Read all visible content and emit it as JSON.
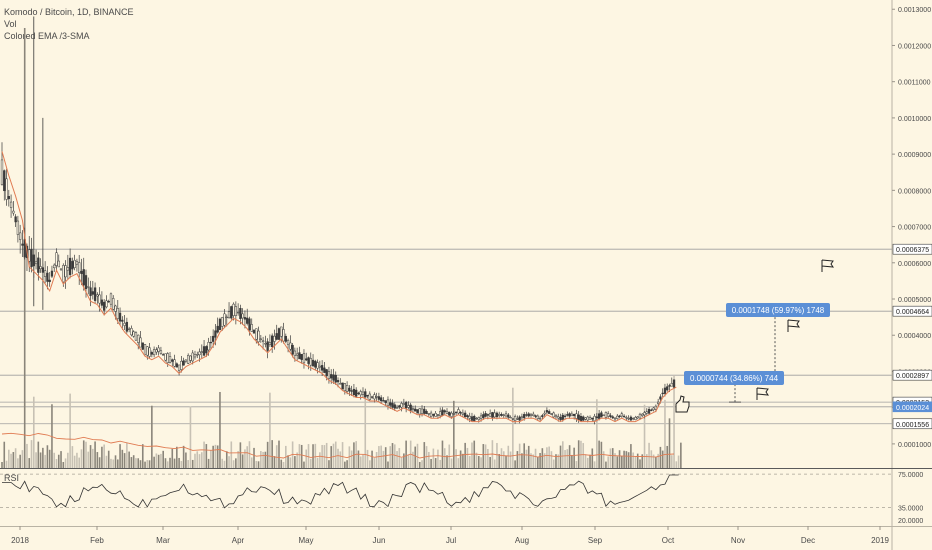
{
  "legend": {
    "title": "Komodo / Bitcoin, 1D, BINANCE",
    "line2": "Vol",
    "line3": "Colored EMA /3-SMA"
  },
  "rsi_label": "RSI",
  "colors": {
    "background": "#fdf6e3",
    "candle": "#3a3a3a",
    "ema": "#e07b52",
    "sma": "#6b6b6b",
    "volume_up": "#c7c1b4",
    "volume_down": "#8a857a",
    "levels": "#9e9e9e",
    "label_blue": "#5b8fd6"
  },
  "chart_data": {
    "type": "line",
    "series_name_price": "",
    "x_ticks": [
      "2018",
      "Feb",
      "Mar",
      "Apr",
      "May",
      "Jun",
      "Jul",
      "Aug",
      "Sep",
      "Oct",
      "Nov",
      "Dec",
      "2019"
    ],
    "y_ticks": [
      "0.0013000",
      "0.0012000",
      "0.0011000",
      "0.0010000",
      "0.0009000",
      "0.0008000",
      "0.0007000",
      "0.0006000",
      "0.0005000",
      "0.0004000",
      "0.0003000",
      "0.0002000",
      "0.0001000"
    ],
    "ylim": [
      5e-05,
      0.00132
    ],
    "price_points": [
      [
        0,
        0.00085
      ],
      [
        3,
        0.00078
      ],
      [
        6,
        0.00072
      ],
      [
        9,
        0.00065
      ],
      [
        12,
        0.00062
      ],
      [
        15,
        0.0006
      ],
      [
        18,
        0.00058
      ],
      [
        21,
        0.00055
      ],
      [
        24,
        0.00061
      ],
      [
        27,
        0.00057
      ],
      [
        30,
        0.00059
      ],
      [
        33,
        0.0006
      ],
      [
        36,
        0.00056
      ],
      [
        39,
        0.00052
      ],
      [
        42,
        0.00051
      ],
      [
        45,
        0.00048
      ],
      [
        48,
        0.0005
      ],
      [
        51,
        0.00046
      ],
      [
        54,
        0.00043
      ],
      [
        57,
        0.00041
      ],
      [
        60,
        0.00039
      ],
      [
        63,
        0.00036
      ],
      [
        66,
        0.00035
      ],
      [
        69,
        0.00036
      ],
      [
        72,
        0.00034
      ],
      [
        75,
        0.00033
      ],
      [
        78,
        0.00031
      ],
      [
        81,
        0.00033
      ],
      [
        84,
        0.00034
      ],
      [
        87,
        0.00035
      ],
      [
        90,
        0.00036
      ],
      [
        93,
        0.00039
      ],
      [
        96,
        0.00043
      ],
      [
        99,
        0.00045
      ],
      [
        102,
        0.00047
      ],
      [
        105,
        0.00046
      ],
      [
        108,
        0.00044
      ],
      [
        111,
        0.00041
      ],
      [
        114,
        0.00039
      ],
      [
        117,
        0.00037
      ],
      [
        120,
        0.00039
      ],
      [
        123,
        0.00041
      ],
      [
        126,
        0.00038
      ],
      [
        129,
        0.00035
      ],
      [
        132,
        0.00034
      ],
      [
        135,
        0.00033
      ],
      [
        138,
        0.00032
      ],
      [
        141,
        0.00031
      ],
      [
        144,
        0.00029
      ],
      [
        147,
        0.00028
      ],
      [
        150,
        0.00026
      ],
      [
        153,
        0.00025
      ],
      [
        156,
        0.00024
      ],
      [
        159,
        0.00024
      ],
      [
        162,
        0.00023
      ],
      [
        165,
        0.00023
      ],
      [
        168,
        0.00022
      ],
      [
        171,
        0.00021
      ],
      [
        174,
        0.0002
      ],
      [
        177,
        0.00021
      ],
      [
        180,
        0.0002
      ],
      [
        183,
        0.00019
      ],
      [
        186,
        0.00019
      ],
      [
        189,
        0.00018
      ],
      [
        192,
        0.00018
      ],
      [
        195,
        0.00019
      ],
      [
        198,
        0.00018
      ],
      [
        201,
        0.00019
      ],
      [
        204,
        0.00018
      ],
      [
        207,
        0.00017
      ],
      [
        210,
        0.00017
      ],
      [
        213,
        0.00018
      ],
      [
        216,
        0.00018
      ],
      [
        219,
        0.00018
      ],
      [
        222,
        0.00018
      ],
      [
        225,
        0.00017
      ],
      [
        228,
        0.00017
      ],
      [
        231,
        0.00018
      ],
      [
        234,
        0.00018
      ],
      [
        237,
        0.00017
      ],
      [
        240,
        0.00019
      ],
      [
        243,
        0.00018
      ],
      [
        246,
        0.00017
      ],
      [
        249,
        0.00018
      ],
      [
        252,
        0.00018
      ],
      [
        255,
        0.00017
      ],
      [
        258,
        0.00017
      ],
      [
        261,
        0.00017
      ],
      [
        264,
        0.00018
      ],
      [
        267,
        0.00018
      ],
      [
        270,
        0.00017
      ],
      [
        273,
        0.00018
      ],
      [
        276,
        0.00017
      ],
      [
        279,
        0.00017
      ],
      [
        282,
        0.00018
      ],
      [
        285,
        0.00019
      ],
      [
        288,
        0.0002
      ],
      [
        291,
        0.00024
      ],
      [
        294,
        0.00026
      ],
      [
        297,
        0.00027
      ]
    ],
    "levels": [
      {
        "label": "0.0006375",
        "value": 0.0006375
      },
      {
        "label": "0.0004664",
        "value": 0.0004664
      },
      {
        "label": "0.0002897",
        "value": 0.0002897
      },
      {
        "label": "0.0002153",
        "value": 0.0002153
      },
      {
        "label": "0.0002024",
        "value": 0.0002024
      },
      {
        "label": "0.0001556",
        "value": 0.0001556
      }
    ],
    "measure_labels": [
      {
        "text": "0.0000744 (34.86%) 744"
      },
      {
        "text": "0.0001748 (59.97%) 1748"
      }
    ],
    "rsi_ticks": [
      "75.0000",
      "35.0000",
      "20.0000"
    ]
  }
}
